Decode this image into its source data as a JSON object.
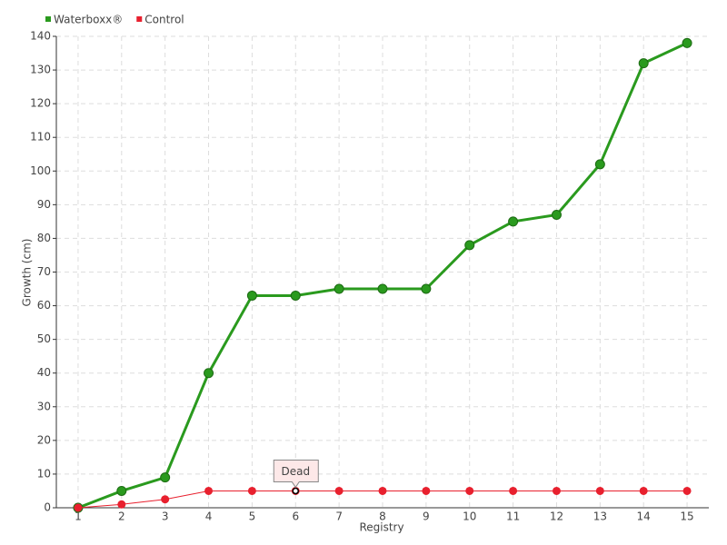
{
  "chart_data": {
    "type": "line",
    "x_label": "Registry",
    "y_label": "Growth (cm)",
    "categories": [
      "1",
      "2",
      "3",
      "4",
      "5",
      "6",
      "7",
      "8",
      "9",
      "10",
      "11",
      "12",
      "13",
      "14",
      "15"
    ],
    "series": [
      {
        "name": "Waterboxx®",
        "color": "#2a9a1e",
        "values": [
          0,
          5,
          9,
          40,
          63,
          63,
          65,
          65,
          65,
          78,
          85,
          87,
          102,
          132,
          138
        ]
      },
      {
        "name": "Control",
        "color": "#e8202e",
        "values": [
          0,
          1,
          2.5,
          5,
          5,
          5,
          5,
          5,
          5,
          5,
          5,
          5,
          5,
          5,
          5
        ]
      }
    ],
    "ylim": [
      0,
      140
    ],
    "yticks": [
      0,
      10,
      20,
      30,
      40,
      50,
      60,
      70,
      80,
      90,
      100,
      110,
      120,
      130,
      140
    ],
    "grid": true,
    "legend": "top-left",
    "annotations": [
      {
        "text": "Dead",
        "series": "Control",
        "category": "6"
      }
    ]
  }
}
